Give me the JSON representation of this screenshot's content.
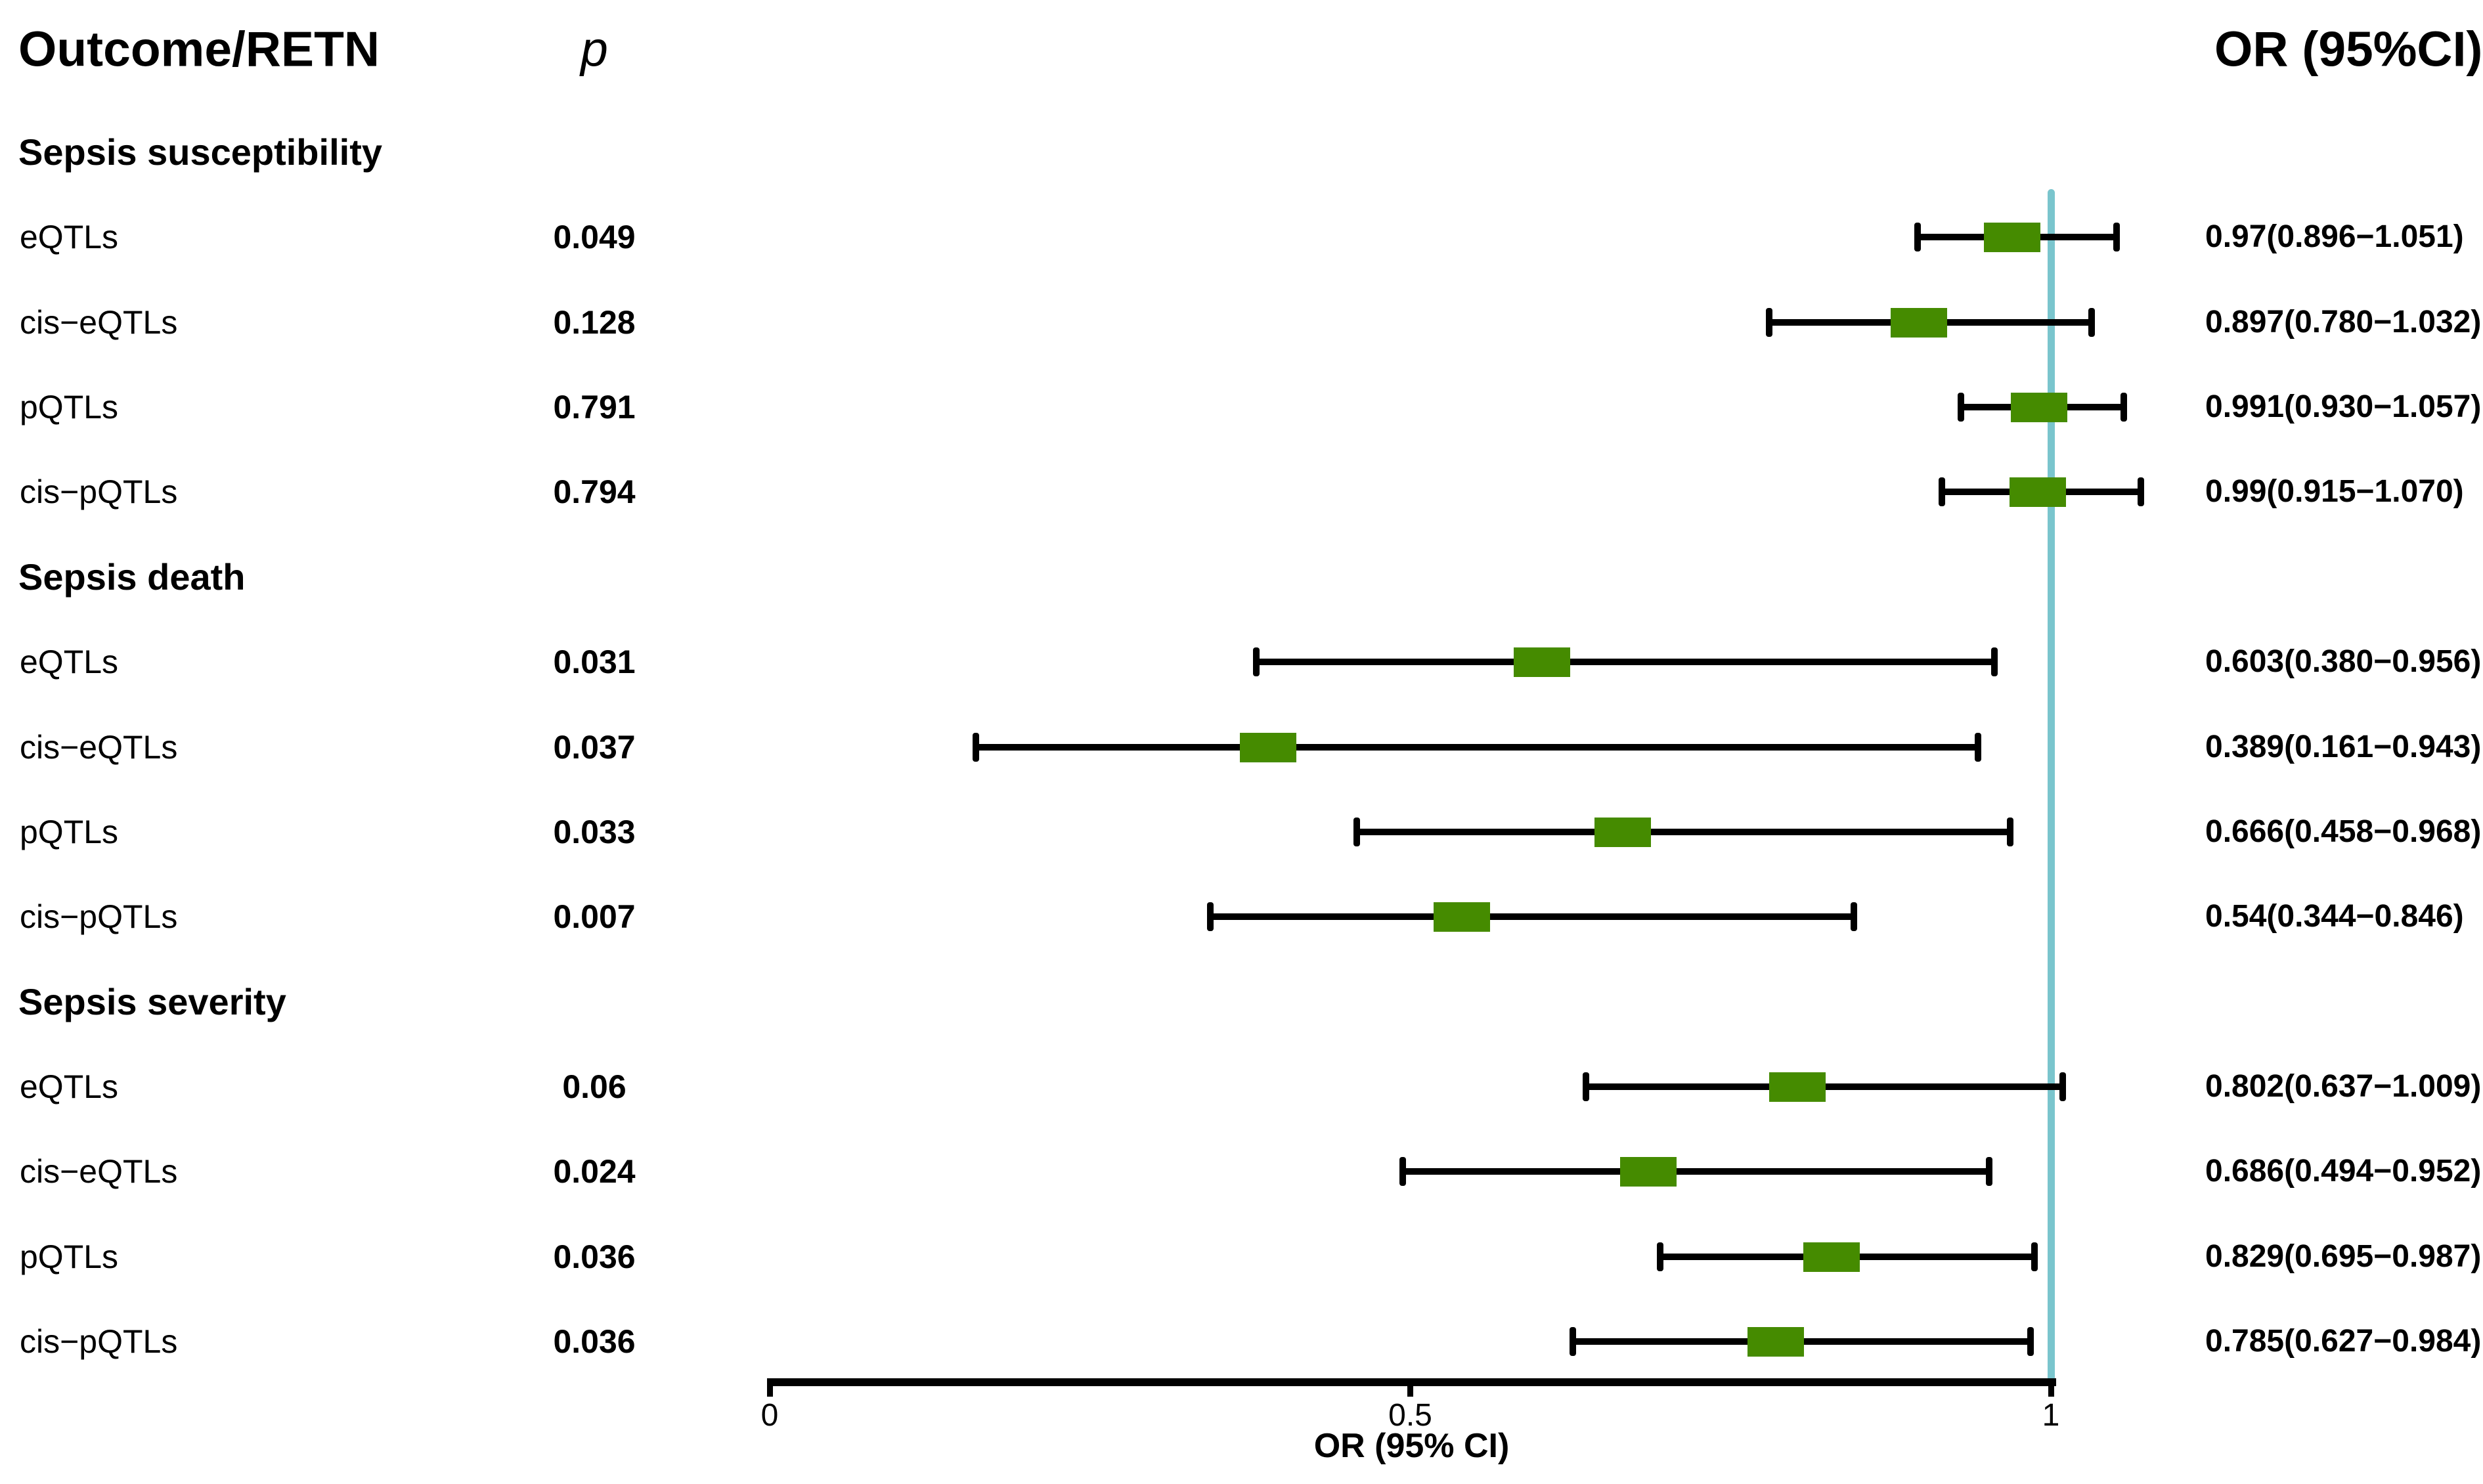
{
  "header": {
    "outcome_column": "Outcome/RETN",
    "p_column": "p",
    "or_column": "OR (95%CI)"
  },
  "axis": {
    "label": "OR (95% CI)",
    "ticks": [
      {
        "label": "0",
        "value": 0
      },
      {
        "label": "0.5",
        "value": 0.5
      },
      {
        "label": "1",
        "value": 1
      }
    ],
    "ref_value": 1
  },
  "colors": {
    "marker": "#458B00",
    "ref_line": "#7AC5CD",
    "axis": "#000000",
    "text": "#000000",
    "background": "#ffffff"
  },
  "chart_data": {
    "type": "forest",
    "title": "",
    "xlabel": "OR (95% CI)",
    "x_ticks": [
      0,
      0.5,
      1
    ],
    "x_ref_line": 1,
    "rows": [
      {
        "kind": "group",
        "label": "Sepsis susceptibility"
      },
      {
        "kind": "item",
        "label": "eQTLs",
        "p": "0.049",
        "or": 0.97,
        "ci_low": 0.896,
        "ci_high": 1.051,
        "or_text": "0.97(0.896−1.051)"
      },
      {
        "kind": "item",
        "label": "cis−eQTLs",
        "p": "0.128",
        "or": 0.897,
        "ci_low": 0.78,
        "ci_high": 1.032,
        "or_text": "0.897(0.780−1.032)"
      },
      {
        "kind": "item",
        "label": "pQTLs",
        "p": "0.791",
        "or": 0.991,
        "ci_low": 0.93,
        "ci_high": 1.057,
        "or_text": "0.991(0.930−1.057)"
      },
      {
        "kind": "item",
        "label": "cis−pQTLs",
        "p": "0.794",
        "or": 0.99,
        "ci_low": 0.915,
        "ci_high": 1.07,
        "or_text": "0.99(0.915−1.070)"
      },
      {
        "kind": "group",
        "label": "Sepsis death"
      },
      {
        "kind": "item",
        "label": "eQTLs",
        "p": "0.031",
        "or": 0.603,
        "ci_low": 0.38,
        "ci_high": 0.956,
        "or_text": "0.603(0.380−0.956)"
      },
      {
        "kind": "item",
        "label": "cis−eQTLs",
        "p": "0.037",
        "or": 0.389,
        "ci_low": 0.161,
        "ci_high": 0.943,
        "or_text": "0.389(0.161−0.943)"
      },
      {
        "kind": "item",
        "label": "pQTLs",
        "p": "0.033",
        "or": 0.666,
        "ci_low": 0.458,
        "ci_high": 0.968,
        "or_text": "0.666(0.458−0.968)"
      },
      {
        "kind": "item",
        "label": "cis−pQTLs",
        "p": "0.007",
        "or": 0.54,
        "ci_low": 0.344,
        "ci_high": 0.846,
        "or_text": "0.54(0.344−0.846)"
      },
      {
        "kind": "group",
        "label": "Sepsis severity"
      },
      {
        "kind": "item",
        "label": "eQTLs",
        "p": "0.06",
        "or": 0.802,
        "ci_low": 0.637,
        "ci_high": 1.009,
        "or_text": "0.802(0.637−1.009)"
      },
      {
        "kind": "item",
        "label": "cis−eQTLs",
        "p": "0.024",
        "or": 0.686,
        "ci_low": 0.494,
        "ci_high": 0.952,
        "or_text": "0.686(0.494−0.952)"
      },
      {
        "kind": "item",
        "label": "pQTLs",
        "p": "0.036",
        "or": 0.829,
        "ci_low": 0.695,
        "ci_high": 0.987,
        "or_text": "0.829(0.695−0.987)"
      },
      {
        "kind": "item",
        "label": "cis−pQTLs",
        "p": "0.036",
        "or": 0.785,
        "ci_low": 0.627,
        "ci_high": 0.984,
        "or_text": "0.785(0.627−0.984)"
      }
    ]
  }
}
